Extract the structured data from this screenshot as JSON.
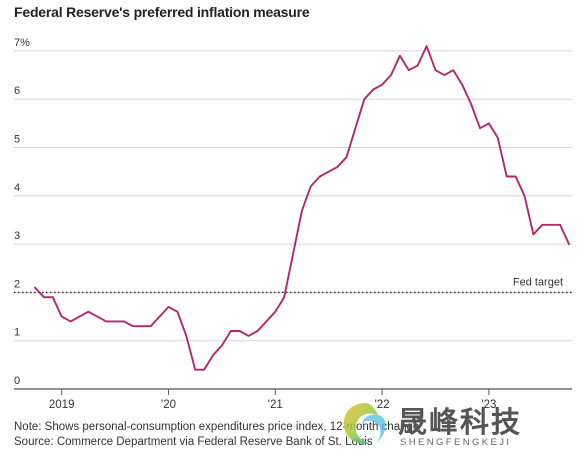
{
  "title": "Federal Reserve's preferred inflation measure",
  "notes": {
    "note": "Note: Shows personal-consumption expenditures price index, 12-month change",
    "source": "Source: Commerce Department via Federal Reserve Bank of St. Louis"
  },
  "watermark": {
    "text_cn": "晟峰科技",
    "text_en": "SHENGFENGKEJI"
  },
  "chart_data": {
    "type": "line",
    "title": "Federal Reserve's preferred inflation measure",
    "xlabel": "",
    "ylabel": "",
    "ylim": [
      0,
      7.3
    ],
    "yticks": [
      0,
      1,
      2,
      3,
      4,
      5,
      6,
      7
    ],
    "ytick_labels": [
      "0",
      "1",
      "2",
      "3",
      "4",
      "5",
      "6",
      "7%"
    ],
    "xticks": [
      "2019",
      "'20",
      "'21",
      "'22",
      "'23"
    ],
    "grid": true,
    "line_color": "#b5266f",
    "series": [
      {
        "values": [
          2.1,
          1.9,
          1.9,
          1.5,
          1.4,
          1.5,
          1.6,
          1.5,
          1.4,
          1.4,
          1.4,
          1.3,
          1.3,
          1.3,
          1.5,
          1.7,
          1.6,
          1.1,
          0.4,
          0.4,
          0.7,
          0.9,
          1.2,
          1.2,
          1.1,
          1.2,
          1.4,
          1.6,
          1.9,
          2.8,
          3.7,
          4.2,
          4.4,
          4.5,
          4.6,
          4.8,
          5.4,
          6.0,
          6.2,
          6.3,
          6.5,
          6.9,
          6.6,
          6.7,
          7.1,
          6.6,
          6.5,
          6.6,
          6.3,
          5.9,
          5.4,
          5.5,
          5.2,
          4.4,
          4.4,
          4.0,
          3.2,
          3.4,
          3.4,
          3.4,
          3.0
        ]
      }
    ],
    "target": {
      "value": 2.0,
      "label": "Fed target"
    }
  }
}
